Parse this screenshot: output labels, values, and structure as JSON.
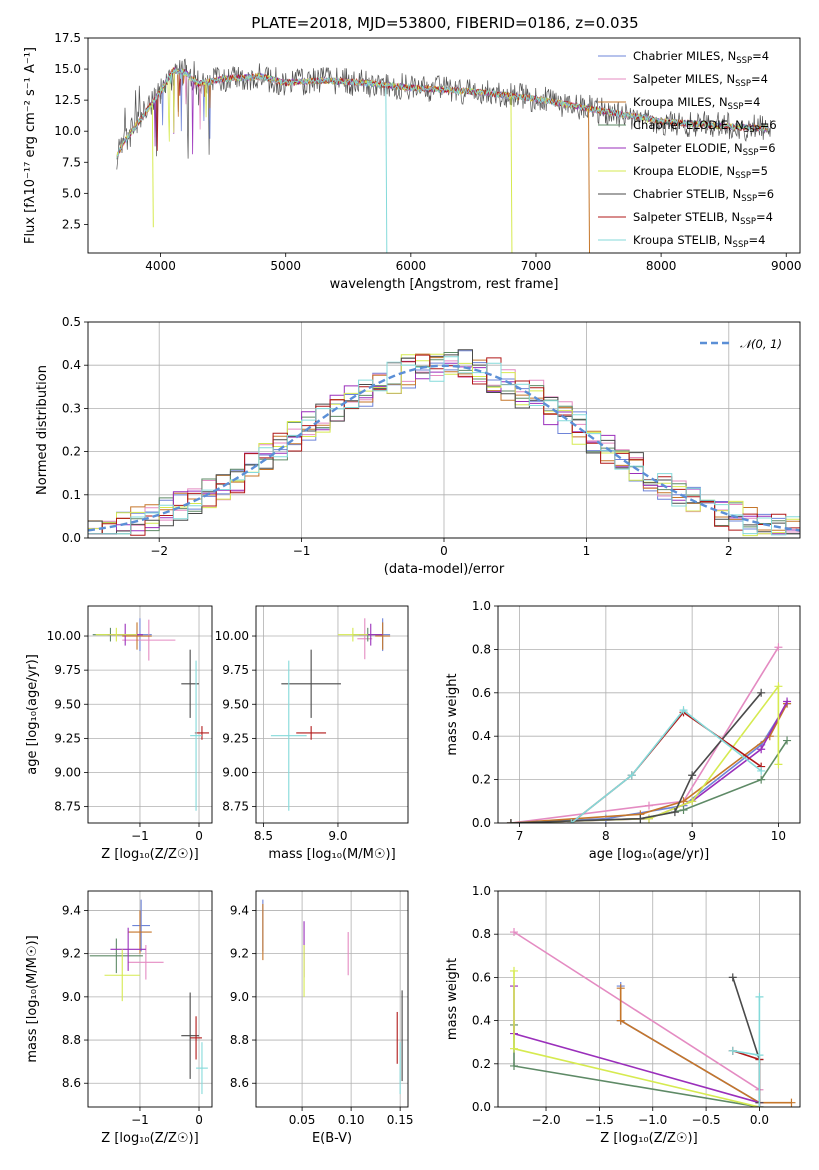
{
  "figure": {
    "title": "PLATE=2018, MJD=53800, FIBERID=0186, z=0.035"
  },
  "colors": {
    "Chabrier MILES": "#6e84d8",
    "Salpeter MILES": "#e48bc2",
    "Kroupa MILES": "#c5762a",
    "Chabrier ELODIE": "#5e8a66",
    "Salpeter ELODIE": "#9a2fbb",
    "Kroupa ELODIE": "#d6ea50",
    "Chabrier STELIB": "#4a4a4a",
    "Salpeter STELIB": "#b01818",
    "Kroupa STELIB": "#84dada",
    "gauss": "#5b8fd6"
  },
  "chart_data": [
    {
      "type": "line",
      "name": "spectrum",
      "title": "PLATE=2018, MJD=53800, FIBERID=0186, z=0.035",
      "xlabel": "wavelength [Angstrom, rest frame]",
      "ylabel": "Flux [fλ10⁻¹⁷ erg cm⁻² s⁻¹ A⁻¹]",
      "xlim": [
        3420,
        9110
      ],
      "ylim": [
        0.2,
        17.5
      ],
      "xticks": [
        4000,
        5000,
        6000,
        7000,
        8000,
        9000
      ],
      "yticks": [
        2.5,
        5.0,
        7.5,
        10.0,
        12.5,
        15.0,
        17.5
      ],
      "ytick_labels": [
        "2.5",
        "5.0",
        "7.5",
        "10.0",
        "12.5",
        "15.0",
        "17.5"
      ],
      "legend": "right",
      "legend_entries": [
        {
          "label": "Chabrier MILES, N",
          "sub": "SSP",
          "suffix": "=4",
          "key": "Chabrier MILES"
        },
        {
          "label": "Salpeter MILES, N",
          "sub": "SSP",
          "suffix": "=4",
          "key": "Salpeter MILES"
        },
        {
          "label": "Kroupa MILES, N",
          "sub": "SSP",
          "suffix": "=4",
          "key": "Kroupa MILES"
        },
        {
          "label": "Chabrier ELODIE, N",
          "sub": "SSP",
          "suffix": "=6",
          "key": "Chabrier ELODIE"
        },
        {
          "label": "Salpeter ELODIE, N",
          "sub": "SSP",
          "suffix": "=6",
          "key": "Salpeter ELODIE"
        },
        {
          "label": "Kroupa ELODIE, N",
          "sub": "SSP",
          "suffix": "=5",
          "key": "Kroupa ELODIE"
        },
        {
          "label": "Chabrier STELIB, N",
          "sub": "SSP",
          "suffix": "=6",
          "key": "Chabrier STELIB"
        },
        {
          "label": "Salpeter STELIB, N",
          "sub": "SSP",
          "suffix": "=4",
          "key": "Salpeter STELIB"
        },
        {
          "label": "Kroupa STELIB, N",
          "sub": "SSP",
          "suffix": "=4",
          "key": "Kroupa STELIB"
        }
      ],
      "continuum": {
        "x": [
          3650,
          3700,
          3800,
          3900,
          4000,
          4100,
          4200,
          4300,
          4500,
          4800,
          5000,
          5300,
          5600,
          6000,
          6500,
          7000,
          7500,
          8000,
          8500,
          8900
        ],
        "y": [
          8.0,
          9.0,
          10.4,
          11.8,
          13.2,
          14.9,
          14.7,
          13.8,
          14.2,
          14.4,
          13.9,
          14.1,
          13.9,
          13.5,
          13.2,
          12.6,
          11.7,
          10.8,
          10.4,
          10.2
        ]
      },
      "dips": [
        {
          "x": 3934,
          "depth": 10.0,
          "key": "Kroupa ELODIE"
        },
        {
          "x": 5800,
          "depth": 13.5,
          "key": "Kroupa STELIB"
        },
        {
          "x": 6800,
          "depth": 12.8,
          "key": "Kroupa ELODIE"
        },
        {
          "x": 7420,
          "depth": 11.8,
          "key": "Kroupa MILES"
        }
      ]
    },
    {
      "type": "line",
      "name": "residual-histogram",
      "xlabel": "(data-model)/error",
      "ylabel": "Normed distribution",
      "xlim": [
        -2.5,
        2.5
      ],
      "ylim": [
        0,
        0.5
      ],
      "xticks": [
        -2,
        -1,
        0,
        1,
        2
      ],
      "xtick_labels": [
        "−2",
        "−1",
        "0",
        "1",
        "2"
      ],
      "yticks": [
        0.0,
        0.1,
        0.2,
        0.3,
        0.4,
        0.5
      ],
      "ytick_labels": [
        "0.0",
        "0.1",
        "0.2",
        "0.3",
        "0.4",
        "0.5"
      ],
      "bin_width": 0.1,
      "gauss_label": "𝒩(0, 1)",
      "legend": "top-right"
    },
    {
      "type": "scatter",
      "name": "age-vs-Z",
      "xlabel": "Z [log₁₀(Z/Z☉)]",
      "ylabel": "age  [log₁₀(age/yr)]",
      "xlim": [
        -1.88,
        0.22
      ],
      "ylim": [
        8.63,
        10.22
      ],
      "xticks": [
        -1,
        0
      ],
      "xtick_labels": [
        "−1",
        "0"
      ],
      "yticks": [
        8.75,
        9.0,
        9.25,
        9.5,
        9.75,
        10.0
      ],
      "ytick_labels": [
        "8.75",
        "9.00",
        "9.25",
        "9.50",
        "9.75",
        "10.00"
      ],
      "points": [
        {
          "key": "Chabrier MILES",
          "x": -1.0,
          "y": 10.01,
          "xerr": 0.2,
          "yerr": 0.12
        },
        {
          "key": "Salpeter MILES",
          "x": -0.85,
          "y": 9.97,
          "xerr": 0.45,
          "yerr": 0.15
        },
        {
          "key": "Kroupa MILES",
          "x": -1.05,
          "y": 10.0,
          "xerr": 0.25,
          "yerr": 0.1
        },
        {
          "key": "Chabrier ELODIE",
          "x": -1.5,
          "y": 10.01,
          "xerr": 0.3,
          "yerr": 0.05
        },
        {
          "key": "Salpeter ELODIE",
          "x": -1.25,
          "y": 10.01,
          "xerr": 0.3,
          "yerr": 0.08
        },
        {
          "key": "Kroupa ELODIE",
          "x": -1.4,
          "y": 10.01,
          "xerr": 0.35,
          "yerr": 0.05
        },
        {
          "key": "Chabrier STELIB",
          "x": -0.15,
          "y": 9.65,
          "xerr": 0.15,
          "yerr": 0.25
        },
        {
          "key": "Salpeter STELIB",
          "x": 0.05,
          "y": 9.29,
          "xerr": 0.12,
          "yerr": 0.05
        },
        {
          "key": "Kroupa STELIB",
          "x": -0.05,
          "y": 9.27,
          "xerr": 0.1,
          "yerr": 0.55
        }
      ]
    },
    {
      "type": "scatter",
      "name": "age-vs-mass",
      "xlabel": "mass [log₁₀(M/M☉)]",
      "ylabel": "",
      "xlim": [
        8.45,
        9.47
      ],
      "ylim": [
        8.63,
        10.22
      ],
      "xticks": [
        8.5,
        9.0
      ],
      "xtick_labels": [
        "8.5",
        "9.0"
      ],
      "yticks": [
        8.75,
        9.0,
        9.25,
        9.5,
        9.75,
        10.0
      ],
      "ytick_labels": [
        "8.75",
        "9.00",
        "9.25",
        "9.50",
        "9.75",
        "10.00"
      ],
      "points": [
        {
          "key": "Chabrier MILES",
          "x": 9.3,
          "y": 10.01,
          "xerr": 0.05,
          "yerr": 0.12
        },
        {
          "key": "Salpeter MILES",
          "x": 9.18,
          "y": 9.98,
          "xerr": 0.05,
          "yerr": 0.15
        },
        {
          "key": "Kroupa MILES",
          "x": 9.3,
          "y": 10.0,
          "xerr": 0.05,
          "yerr": 0.1
        },
        {
          "key": "Chabrier ELODIE",
          "x": 9.2,
          "y": 10.01,
          "xerr": 0.1,
          "yerr": 0.05
        },
        {
          "key": "Salpeter ELODIE",
          "x": 9.22,
          "y": 10.01,
          "xerr": 0.08,
          "yerr": 0.08
        },
        {
          "key": "Kroupa ELODIE",
          "x": 9.1,
          "y": 10.01,
          "xerr": 0.1,
          "yerr": 0.05
        },
        {
          "key": "Chabrier STELIB",
          "x": 8.82,
          "y": 9.65,
          "xerr": 0.2,
          "yerr": 0.25
        },
        {
          "key": "Salpeter STELIB",
          "x": 8.82,
          "y": 9.29,
          "xerr": 0.1,
          "yerr": 0.05
        },
        {
          "key": "Kroupa STELIB",
          "x": 8.67,
          "y": 9.27,
          "xerr": 0.12,
          "yerr": 0.55
        }
      ]
    },
    {
      "type": "line",
      "name": "mass-weight-vs-age",
      "xlabel": "age  [log₁₀(age/yr)]",
      "ylabel": "mass weight",
      "xlim": [
        6.75,
        10.25
      ],
      "ylim": [
        0,
        1
      ],
      "xticks": [
        7,
        8,
        9,
        10
      ],
      "xtick_labels": [
        "7",
        "8",
        "9",
        "10"
      ],
      "yticks": [
        0.0,
        0.2,
        0.4,
        0.6,
        0.8,
        1.0
      ],
      "ytick_labels": [
        "0.0",
        "0.2",
        "0.4",
        "0.6",
        "0.8",
        "1.0"
      ],
      "series": [
        {
          "key": "Chabrier MILES",
          "x": [
            6.9,
            8.0,
            8.9,
            9.8,
            10.1
          ],
          "y": [
            0.0,
            0.02,
            0.08,
            0.36,
            0.55
          ]
        },
        {
          "key": "Salpeter MILES",
          "x": [
            6.9,
            8.5,
            8.9,
            10.0
          ],
          "y": [
            0.0,
            0.08,
            0.1,
            0.81
          ]
        },
        {
          "key": "Kroupa MILES",
          "x": [
            6.9,
            8.4,
            8.9,
            9.9,
            10.1
          ],
          "y": [
            0.0,
            0.04,
            0.1,
            0.4,
            0.55
          ]
        },
        {
          "key": "Chabrier ELODIE",
          "x": [
            6.9,
            8.4,
            8.9,
            9.8,
            10.1
          ],
          "y": [
            0.0,
            0.02,
            0.06,
            0.2,
            0.38
          ]
        },
        {
          "key": "Salpeter ELODIE",
          "x": [
            6.9,
            8.5,
            9.0,
            9.8,
            10.1
          ],
          "y": [
            0.0,
            0.02,
            0.1,
            0.34,
            0.56
          ]
        },
        {
          "key": "Kroupa ELODIE",
          "x": [
            6.9,
            8.5,
            9.0,
            10.0,
            10.0
          ],
          "y": [
            0.0,
            0.02,
            0.1,
            0.63,
            0.27
          ]
        },
        {
          "key": "Chabrier STELIB",
          "x": [
            6.9,
            8.4,
            8.8,
            9.0,
            9.8
          ],
          "y": [
            0.0,
            0.02,
            0.05,
            0.22,
            0.6
          ]
        },
        {
          "key": "Salpeter STELIB",
          "x": [
            7.6,
            8.3,
            8.9,
            9.8
          ],
          "y": [
            0.0,
            0.22,
            0.51,
            0.26
          ]
        },
        {
          "key": "Kroupa STELIB",
          "x": [
            7.6,
            8.3,
            8.9,
            9.8
          ],
          "y": [
            0.0,
            0.22,
            0.52,
            0.24
          ]
        }
      ]
    },
    {
      "type": "scatter",
      "name": "mass-vs-Z",
      "xlabel": "Z [log₁₀(Z/Z☉)]",
      "ylabel": "mass [log₁₀(M/M☉)]",
      "xlim": [
        -1.88,
        0.22
      ],
      "ylim": [
        8.49,
        9.49
      ],
      "xticks": [
        -1,
        0
      ],
      "xtick_labels": [
        "−1",
        "0"
      ],
      "yticks": [
        8.6,
        8.8,
        9.0,
        9.2,
        9.4
      ],
      "ytick_labels": [
        "8.6",
        "8.8",
        "9.0",
        "9.2",
        "9.4"
      ],
      "points": [
        {
          "key": "Chabrier MILES",
          "x": -0.98,
          "y": 9.33,
          "xerr": 0.15,
          "yerr": 0.12
        },
        {
          "key": "Salpeter MILES",
          "x": -0.9,
          "y": 9.16,
          "xerr": 0.3,
          "yerr": 0.08
        },
        {
          "key": "Kroupa MILES",
          "x": -1.0,
          "y": 9.3,
          "xerr": 0.2,
          "yerr": 0.1
        },
        {
          "key": "Chabrier ELODIE",
          "x": -1.4,
          "y": 9.19,
          "xerr": 0.45,
          "yerr": 0.08
        },
        {
          "key": "Salpeter ELODIE",
          "x": -1.2,
          "y": 9.22,
          "xerr": 0.3,
          "yerr": 0.1
        },
        {
          "key": "Kroupa ELODIE",
          "x": -1.3,
          "y": 9.1,
          "xerr": 0.3,
          "yerr": 0.12
        },
        {
          "key": "Chabrier STELIB",
          "x": -0.15,
          "y": 8.82,
          "xerr": 0.15,
          "yerr": 0.2
        },
        {
          "key": "Salpeter STELIB",
          "x": -0.05,
          "y": 8.81,
          "xerr": 0.1,
          "yerr": 0.1
        },
        {
          "key": "Kroupa STELIB",
          "x": 0.05,
          "y": 8.67,
          "xerr": 0.1,
          "yerr": 0.12
        }
      ]
    },
    {
      "type": "scatter",
      "name": "mass-vs-EBV",
      "xlabel": "E(B-V)",
      "ylabel": "",
      "xlim": [
        0.003,
        0.158
      ],
      "ylim": [
        8.49,
        9.49
      ],
      "xticks": [
        0.05,
        0.1,
        0.15
      ],
      "xtick_labels": [
        "0.05",
        "0.10",
        "0.15"
      ],
      "yticks": [
        8.6,
        8.8,
        9.0,
        9.2,
        9.4
      ],
      "ytick_labels": [
        "8.6",
        "8.8",
        "9.0",
        "9.2",
        "9.4"
      ],
      "points": [
        {
          "key": "Chabrier MILES",
          "x": 0.01,
          "y": 9.33,
          "xerr": 0,
          "yerr": 0.12
        },
        {
          "key": "Kroupa MILES",
          "x": 0.01,
          "y": 9.3,
          "xerr": 0,
          "yerr": 0.13
        },
        {
          "key": "Salpeter ELODIE",
          "x": 0.052,
          "y": 9.22,
          "xerr": 0,
          "yerr": 0.13
        },
        {
          "key": "Kroupa ELODIE",
          "x": 0.052,
          "y": 9.12,
          "xerr": 0,
          "yerr": 0.12
        },
        {
          "key": "Salpeter MILES",
          "x": 0.097,
          "y": 9.2,
          "xerr": 0,
          "yerr": 0.1
        },
        {
          "key": "Salpeter STELIB",
          "x": 0.147,
          "y": 8.81,
          "xerr": 0,
          "yerr": 0.12
        },
        {
          "key": "Chabrier STELIB",
          "x": 0.152,
          "y": 8.82,
          "xerr": 0,
          "yerr": 0.21
        },
        {
          "key": "Kroupa STELIB",
          "x": 0.15,
          "y": 8.67,
          "xerr": 0,
          "yerr": 0.12
        }
      ]
    },
    {
      "type": "line",
      "name": "mass-weight-vs-Z",
      "xlabel": "Z [log₁₀(Z/Z☉)]",
      "ylabel": "mass weight",
      "xlim": [
        -2.45,
        0.38
      ],
      "ylim": [
        0,
        1
      ],
      "xticks": [
        -2.0,
        -1.5,
        -1.0,
        -0.5,
        0.0
      ],
      "xtick_labels": [
        "−2.0",
        "−1.5",
        "−1.0",
        "−0.5",
        "0.0"
      ],
      "yticks": [
        0.0,
        0.2,
        0.4,
        0.6,
        0.8,
        1.0
      ],
      "ytick_labels": [
        "0.0",
        "0.2",
        "0.4",
        "0.6",
        "0.8",
        "1.0"
      ],
      "series": [
        {
          "key": "Chabrier MILES",
          "x": [
            -1.3,
            -1.3,
            0.0
          ],
          "y": [
            0.56,
            0.4,
            0.02
          ]
        },
        {
          "key": "Salpeter MILES",
          "x": [
            -2.3,
            0.0
          ],
          "y": [
            0.81,
            0.08
          ]
        },
        {
          "key": "Kroupa MILES",
          "x": [
            -1.3,
            -1.3,
            0.0,
            0.3
          ],
          "y": [
            0.55,
            0.4,
            0.02,
            0.02
          ]
        },
        {
          "key": "Chabrier ELODIE",
          "x": [
            -2.3,
            -2.3,
            0.0
          ],
          "y": [
            0.38,
            0.19,
            0.0
          ]
        },
        {
          "key": "Salpeter ELODIE",
          "x": [
            -2.3,
            -2.3,
            0.0
          ],
          "y": [
            0.56,
            0.34,
            0.02
          ]
        },
        {
          "key": "Kroupa ELODIE",
          "x": [
            -2.3,
            -2.3,
            0.0
          ],
          "y": [
            0.63,
            0.27,
            0.0
          ]
        },
        {
          "key": "Chabrier STELIB",
          "x": [
            -0.25,
            0.0,
            0.0
          ],
          "y": [
            0.6,
            0.22,
            0.02
          ]
        },
        {
          "key": "Salpeter STELIB",
          "x": [
            -0.25,
            0.0,
            0.0
          ],
          "y": [
            0.26,
            0.22,
            0.0
          ]
        },
        {
          "key": "Kroupa STELIB",
          "x": [
            -0.25,
            0.0,
            0.0,
            0.0
          ],
          "y": [
            0.26,
            0.24,
            0.51,
            0.0
          ]
        }
      ]
    }
  ]
}
